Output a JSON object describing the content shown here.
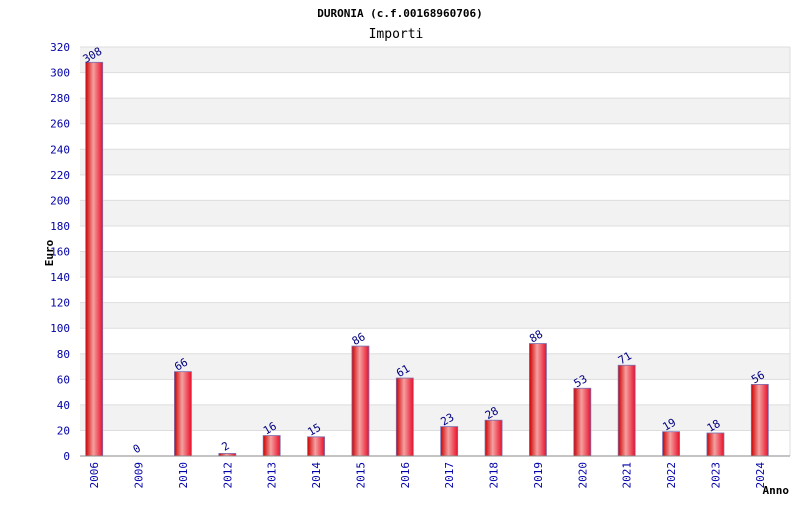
{
  "chart_data": {
    "type": "bar",
    "title": "DURONIA (c.f.00168960706)",
    "subtitle": "Importi",
    "xlabel": "Anno",
    "ylabel": "Euro",
    "categories": [
      "2006",
      "2009",
      "2010",
      "2012",
      "2013",
      "2014",
      "2015",
      "2016",
      "2017",
      "2018",
      "2019",
      "2020",
      "2021",
      "2022",
      "2023",
      "2024"
    ],
    "values": [
      308,
      0,
      66,
      2,
      16,
      15,
      86,
      61,
      23,
      28,
      88,
      53,
      71,
      19,
      18,
      56
    ],
    "data_labels": [
      "308",
      "0",
      "66",
      "2",
      "16",
      "15",
      "86",
      "61",
      "23",
      "28",
      "88",
      "53",
      "71",
      "19",
      "18",
      "56"
    ],
    "ylim": [
      0,
      320
    ],
    "yticks": [
      "0",
      "20",
      "40",
      "60",
      "80",
      "100",
      "120",
      "140",
      "160",
      "180",
      "200",
      "220",
      "240",
      "260",
      "280",
      "300",
      "320"
    ],
    "grid": true,
    "colors": {
      "bar_edge": "#cc0000",
      "bar_center": "#f5a0a0",
      "bar_base": "#e8102a",
      "band": "#f2f2f2",
      "tick_text": "#0000aa"
    }
  }
}
